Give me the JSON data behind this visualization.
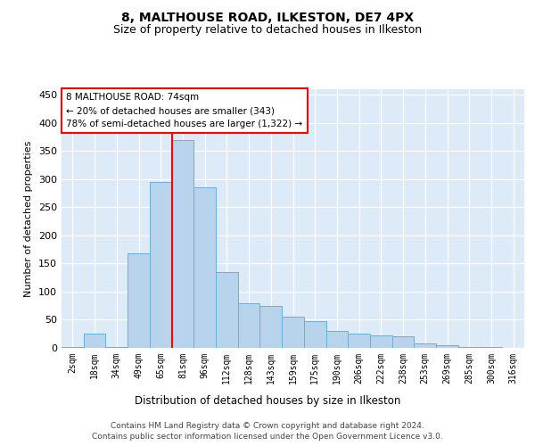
{
  "title1": "8, MALTHOUSE ROAD, ILKESTON, DE7 4PX",
  "title2": "Size of property relative to detached houses in Ilkeston",
  "xlabel": "Distribution of detached houses by size in Ilkeston",
  "ylabel": "Number of detached properties",
  "categories": [
    "2sqm",
    "18sqm",
    "34sqm",
    "49sqm",
    "65sqm",
    "81sqm",
    "96sqm",
    "112sqm",
    "128sqm",
    "143sqm",
    "159sqm",
    "175sqm",
    "190sqm",
    "206sqm",
    "222sqm",
    "238sqm",
    "253sqm",
    "269sqm",
    "285sqm",
    "300sqm",
    "316sqm"
  ],
  "values": [
    1,
    25,
    2,
    168,
    295,
    370,
    285,
    135,
    80,
    75,
    55,
    48,
    30,
    25,
    22,
    20,
    8,
    4,
    2,
    1,
    0
  ],
  "bar_color": "#b8d4ed",
  "bar_edge_color": "#6baed6",
  "vline_index": 4,
  "annotation_text": "8 MALTHOUSE ROAD: 74sqm\n← 20% of detached houses are smaller (343)\n78% of semi-detached houses are larger (1,322) →",
  "footer1": "Contains HM Land Registry data © Crown copyright and database right 2024.",
  "footer2": "Contains public sector information licensed under the Open Government Licence v3.0.",
  "ylim": [
    0,
    460
  ],
  "yticks": [
    0,
    50,
    100,
    150,
    200,
    250,
    300,
    350,
    400,
    450
  ],
  "plot_background": "#ddeaf7",
  "fig_width": 6.0,
  "fig_height": 5.0,
  "dpi": 100
}
